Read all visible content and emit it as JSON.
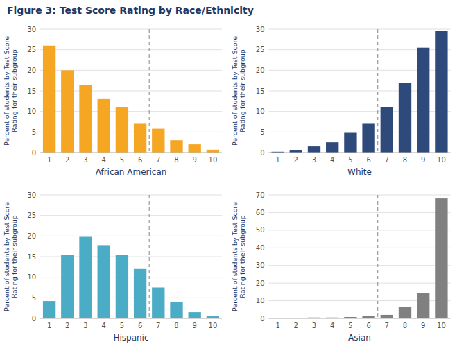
{
  "chart_data": [
    {
      "type": "bar",
      "title": "Figure 3: Test Score Rating by Race/Ethnicity",
      "xlabel": "African American",
      "ylabel": "Percent of students by Test Score\nRating for their subgroup",
      "categories": [
        "1",
        "2",
        "3",
        "4",
        "5",
        "6",
        "7",
        "8",
        "9",
        "10"
      ],
      "values": [
        26,
        20,
        16.5,
        13,
        11,
        7,
        5.8,
        3,
        2,
        0.7
      ],
      "color": "#F5A623",
      "ylim": [
        0,
        30
      ],
      "yticks": [
        0,
        5,
        10,
        15,
        20,
        25,
        30
      ],
      "grid": true,
      "vline": 6.5
    },
    {
      "type": "bar",
      "xlabel": "White",
      "ylabel": "Percent of students by Test Score\nRating for their subgroup",
      "categories": [
        "1",
        "2",
        "3",
        "4",
        "5",
        "6",
        "7",
        "8",
        "9",
        "10"
      ],
      "values": [
        0.2,
        0.5,
        1.5,
        2.5,
        4.8,
        7,
        11,
        17,
        25.5,
        29.5
      ],
      "color": "#2E4A7A",
      "ylim": [
        0,
        30
      ],
      "yticks": [
        0,
        5,
        10,
        15,
        20,
        25,
        30
      ],
      "grid": true,
      "vline": 6.5
    },
    {
      "type": "bar",
      "xlabel": "Hispanic",
      "ylabel": "Percent of students by Test Score\nRating for their subgroup",
      "categories": [
        "1",
        "2",
        "3",
        "4",
        "5",
        "6",
        "7",
        "8",
        "9",
        "10"
      ],
      "values": [
        4.2,
        15.5,
        19.8,
        17.8,
        15.5,
        12,
        7.5,
        4,
        1.5,
        0.5
      ],
      "color": "#4BACC6",
      "ylim": [
        0,
        30
      ],
      "yticks": [
        0,
        5,
        10,
        15,
        20,
        25,
        30
      ],
      "grid": true,
      "vline": 6.5
    },
    {
      "type": "bar",
      "xlabel": "Asian",
      "ylabel": "Percent of students by Test Score\nRating for their subgroup",
      "categories": [
        "1",
        "2",
        "3",
        "4",
        "5",
        "6",
        "7",
        "8",
        "9",
        "10"
      ],
      "values": [
        0.3,
        0.4,
        0.5,
        0.5,
        0.8,
        1.5,
        2,
        6.5,
        14.5,
        68
      ],
      "color": "#808080",
      "ylim": [
        0,
        70
      ],
      "yticks": [
        0,
        10,
        20,
        30,
        40,
        50,
        60,
        70
      ],
      "grid": true,
      "vline": 6.5
    }
  ]
}
